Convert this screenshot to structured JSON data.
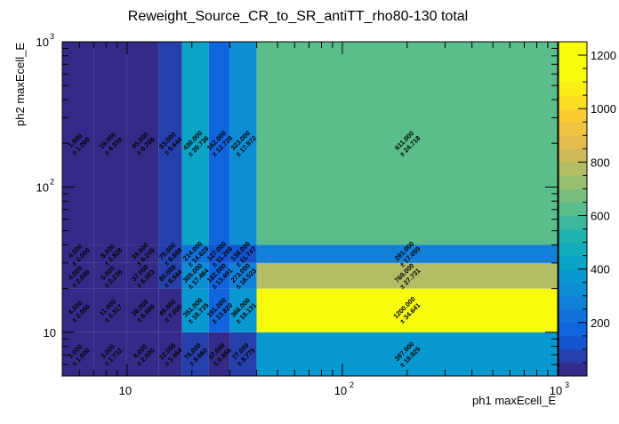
{
  "chart_data": {
    "type": "heatmap",
    "title": "Reweight_Source_CR_to_SR_antiTT_rho80-130 total",
    "xlabel": "ph1 maxEcell_E",
    "ylabel": "ph2 maxEcell_E",
    "x_scale": "log",
    "y_scale": "log",
    "xlim": [
      5,
      1000
    ],
    "ylim": [
      5,
      1000
    ],
    "x_edges": [
      5,
      7,
      10,
      14,
      18,
      24,
      30,
      40,
      1000
    ],
    "y_edges": [
      5,
      10,
      20,
      30,
      40,
      1000
    ],
    "x_tick_labels": [
      {
        "value": 10,
        "label": "10"
      },
      {
        "value": 100,
        "label": "10"
      },
      {
        "value": 1000,
        "label": "10"
      }
    ],
    "x_tick_exponents": [
      "",
      "2",
      "3"
    ],
    "y_tick_labels": [
      {
        "value": 10,
        "label": "10"
      },
      {
        "value": 100,
        "label": "10"
      },
      {
        "value": 1000,
        "label": "10"
      }
    ],
    "y_tick_exponents": [
      "",
      "2",
      "3"
    ],
    "colorbar": {
      "min": 0,
      "max": 1250,
      "ticks": [
        {
          "value": 200,
          "label": "200"
        },
        {
          "value": 400,
          "label": "400"
        },
        {
          "value": 600,
          "label": "600"
        },
        {
          "value": 800,
          "label": "800"
        },
        {
          "value": 1000,
          "label": "1000"
        },
        {
          "value": 1200,
          "label": "1200"
        }
      ]
    },
    "cells": [
      {
        "ix": 0,
        "iy": 0,
        "value": "1.000",
        "error": "± 1.000",
        "z": 1
      },
      {
        "ix": 1,
        "iy": 0,
        "value": "3.000",
        "error": "± 1.732",
        "z": 3
      },
      {
        "ix": 2,
        "iy": 0,
        "value": "4.000",
        "error": "± 2.000",
        "z": 4
      },
      {
        "ix": 3,
        "iy": 0,
        "value": "12.000",
        "error": "± 3.464",
        "z": 12
      },
      {
        "ix": 4,
        "iy": 0,
        "value": "75.000",
        "error": "± 8.660",
        "z": 75
      },
      {
        "ix": 5,
        "iy": 0,
        "value": "47.000",
        "error": "± 6.856",
        "z": 47
      },
      {
        "ix": 6,
        "iy": 0,
        "value": "77.000",
        "error": "± 8.775",
        "z": 77
      },
      {
        "ix": 7,
        "iy": 0,
        "value": "397.000",
        "error": "± 19.925",
        "z": 397
      },
      {
        "ix": 0,
        "iy": 1,
        "value": "4.000",
        "error": "± 2.000",
        "z": 4
      },
      {
        "ix": 1,
        "iy": 1,
        "value": "11.000",
        "error": "± 3.317",
        "z": 11
      },
      {
        "ix": 2,
        "iy": 1,
        "value": "36.000",
        "error": "± 6.000",
        "z": 36
      },
      {
        "ix": 3,
        "iy": 1,
        "value": "49.000",
        "error": "± 7.000",
        "z": 49
      },
      {
        "ix": 4,
        "iy": 1,
        "value": "351.000",
        "error": "± 18.735",
        "z": 351
      },
      {
        "ix": 5,
        "iy": 1,
        "value": "191.000",
        "error": "± 13.820",
        "z": 191
      },
      {
        "ix": 6,
        "iy": 1,
        "value": "366.000",
        "error": "± 19.131",
        "z": 366
      },
      {
        "ix": 7,
        "iy": 1,
        "value": "1200.000",
        "error": "± 34.641",
        "z": 1200
      },
      {
        "ix": 0,
        "iy": 2,
        "value": "4.000",
        "error": "± 2.000",
        "z": 4
      },
      {
        "ix": 1,
        "iy": 2,
        "value": "5.000",
        "error": "± 2.236",
        "z": 5
      },
      {
        "ix": 2,
        "iy": 2,
        "value": "37.000",
        "error": "± 6.083",
        "z": 37
      },
      {
        "ix": 3,
        "iy": 2,
        "value": "80.000",
        "error": "± 8.944",
        "z": 80
      },
      {
        "ix": 4,
        "iy": 2,
        "value": "305.000",
        "error": "± 17.464",
        "z": 305
      },
      {
        "ix": 5,
        "iy": 2,
        "value": "182.000",
        "error": "± 13.491",
        "z": 182
      },
      {
        "ix": 6,
        "iy": 2,
        "value": "273.000",
        "error": "± 16.523",
        "z": 273
      },
      {
        "ix": 7,
        "iy": 2,
        "value": "769.000",
        "error": "± 27.731",
        "z": 769
      },
      {
        "ix": 0,
        "iy": 3,
        "value": "4.000",
        "error": "± 2.000",
        "z": 4
      },
      {
        "ix": 1,
        "iy": 3,
        "value": "8.000",
        "error": "± 2.828",
        "z": 8
      },
      {
        "ix": 2,
        "iy": 3,
        "value": "39.000",
        "error": "± 6.245",
        "z": 39
      },
      {
        "ix": 3,
        "iy": 3,
        "value": "79.000",
        "error": "± 8.888",
        "z": 79
      },
      {
        "ix": 4,
        "iy": 3,
        "value": "214.000",
        "error": "± 14.629",
        "z": 214
      },
      {
        "ix": 5,
        "iy": 3,
        "value": "127.000",
        "error": "± 11.269",
        "z": 127
      },
      {
        "ix": 6,
        "iy": 3,
        "value": "138.000",
        "error": "± 11.747",
        "z": 138
      },
      {
        "ix": 7,
        "iy": 3,
        "value": "291.000",
        "error": "± 17.059",
        "z": 291
      },
      {
        "ix": 0,
        "iy": 4,
        "value": "1.000",
        "error": "± 1.000",
        "z": 1
      },
      {
        "ix": 1,
        "iy": 4,
        "value": "19.000",
        "error": "± 4.359",
        "z": 19
      },
      {
        "ix": 2,
        "iy": 4,
        "value": "45.000",
        "error": "± 6.708",
        "z": 45
      },
      {
        "ix": 3,
        "iy": 4,
        "value": "93.000",
        "error": "± 9.644",
        "z": 93
      },
      {
        "ix": 4,
        "iy": 4,
        "value": "430.000",
        "error": "± 20.736",
        "z": 430
      },
      {
        "ix": 5,
        "iy": 4,
        "value": "162.000",
        "error": "± 12.728",
        "z": 162
      },
      {
        "ix": 6,
        "iy": 4,
        "value": "323.000",
        "error": "± 17.972",
        "z": 323
      },
      {
        "ix": 7,
        "iy": 4,
        "value": "611.000",
        "error": "± 24.718",
        "z": 611
      }
    ]
  }
}
